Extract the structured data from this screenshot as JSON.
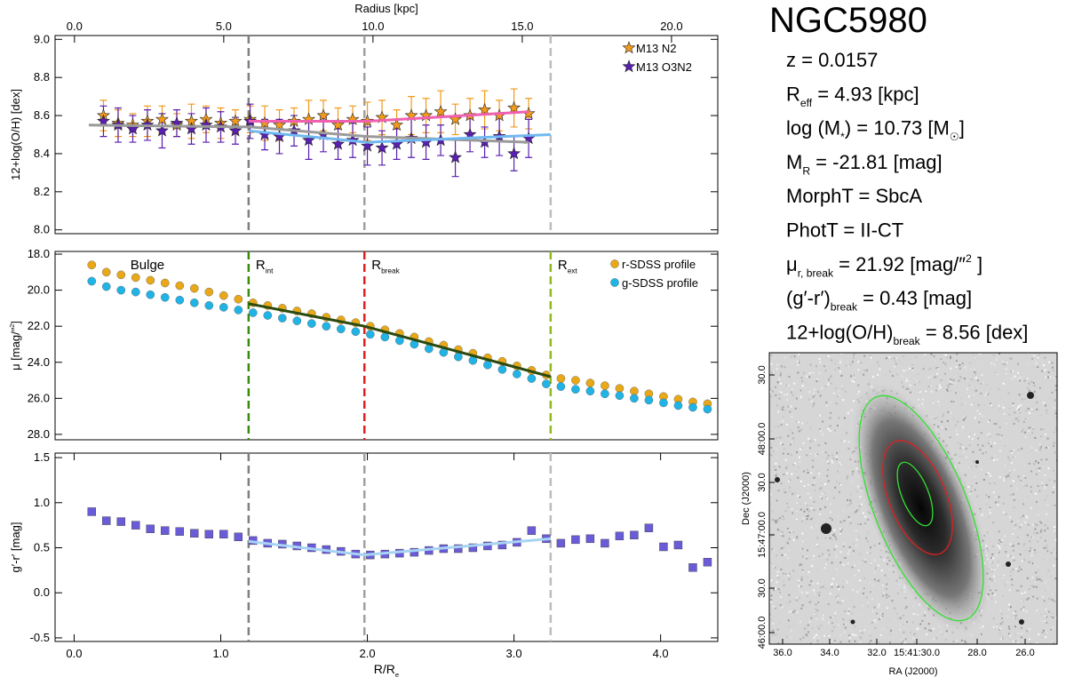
{
  "chart_data": [
    {
      "type": "scatter",
      "ylabel": [
        "12+log(O/H) [dex]"
      ],
      "x2label": "Radius [kpc]",
      "xlim": [
        -0.13,
        4.39
      ],
      "x2lim": [
        -0.65,
        21.55
      ],
      "x2ticks": [
        {
          "value": 0,
          "label": "0.0"
        },
        {
          "value": 5,
          "label": "5.0"
        },
        {
          "value": 10,
          "label": "10.0"
        },
        {
          "value": 15,
          "label": "15.0"
        },
        {
          "value": 20,
          "label": "20.0"
        }
      ],
      "ylim": [
        7.98,
        9.02
      ],
      "yticks": [
        {
          "value": 8,
          "label": "8.0"
        },
        8.2,
        8.4,
        8.6,
        8.8,
        {
          "value": 9,
          "label": "9.0"
        }
      ],
      "legend": "upper right",
      "x": [
        0.2,
        0.3,
        0.4,
        0.5,
        0.6,
        0.7,
        0.8,
        0.9,
        1.0,
        1.1,
        1.2,
        1.3,
        1.4,
        1.5,
        1.6,
        1.7,
        1.8,
        1.9,
        2.0,
        2.1,
        2.2,
        2.3,
        2.4,
        2.5,
        2.6,
        2.7,
        2.8,
        2.9,
        3.0,
        3.1
      ],
      "series": [
        {
          "name": "M13 N2",
          "color": "#f29a1c",
          "marker": "star",
          "values": [
            8.6,
            8.56,
            8.55,
            8.57,
            8.58,
            8.55,
            8.57,
            8.58,
            8.56,
            8.57,
            8.58,
            8.56,
            8.55,
            8.57,
            8.58,
            8.6,
            8.55,
            8.58,
            8.57,
            8.59,
            8.55,
            8.6,
            8.6,
            8.62,
            8.58,
            8.6,
            8.63,
            8.6,
            8.64,
            8.61
          ],
          "errors": [
            0.08,
            0.07,
            0.06,
            0.08,
            0.07,
            0.06,
            0.09,
            0.07,
            0.08,
            0.06,
            0.07,
            0.09,
            0.08,
            0.07,
            0.1,
            0.08,
            0.09,
            0.07,
            0.1,
            0.09,
            0.08,
            0.1,
            0.09,
            0.11,
            0.08,
            0.09,
            0.1,
            0.08,
            0.1,
            0.08
          ]
        },
        {
          "name": "M13 O3N2",
          "color": "#5a1fb0",
          "marker": "star",
          "values": [
            8.57,
            8.55,
            8.53,
            8.55,
            8.52,
            8.56,
            8.53,
            8.55,
            8.54,
            8.52,
            8.57,
            8.5,
            8.49,
            8.52,
            8.47,
            8.5,
            8.45,
            8.47,
            8.44,
            8.43,
            8.45,
            8.48,
            8.46,
            8.47,
            8.38,
            8.5,
            8.46,
            8.49,
            8.4,
            8.48
          ],
          "errors": [
            0.08,
            0.09,
            0.07,
            0.08,
            0.09,
            0.07,
            0.08,
            0.09,
            0.08,
            0.07,
            0.09,
            0.08,
            0.09,
            0.08,
            0.1,
            0.09,
            0.08,
            0.09,
            0.1,
            0.09,
            0.08,
            0.1,
            0.09,
            0.08,
            0.1,
            0.09,
            0.08,
            0.1,
            0.09,
            0.1
          ]
        }
      ],
      "fits": [
        {
          "color": "#9a9a9a",
          "x": [
            0.1,
            1.2,
            2.0,
            3.1
          ],
          "values": [
            8.55,
            8.54,
            8.49,
            8.46
          ]
        },
        {
          "color": "#f060b0",
          "x": [
            1.19,
            2.0,
            3.1
          ],
          "values": [
            8.57,
            8.57,
            8.62
          ]
        },
        {
          "color": "#70b8f0",
          "x": [
            1.19,
            2.0,
            3.25
          ],
          "values": [
            8.52,
            8.46,
            8.5
          ]
        }
      ],
      "vlines": [
        {
          "x": 1.19,
          "color": "#808080"
        },
        {
          "x": 1.98,
          "color": "#a0a0a0"
        },
        {
          "x": 3.25,
          "color": "#bcbcbc"
        }
      ]
    },
    {
      "type": "scatter",
      "ylabel": [
        "μ [mag/″",
        {
          "sup": "2"
        },
        "]"
      ],
      "xlim": [
        -0.13,
        4.39
      ],
      "ylim": [
        28.3,
        17.85
      ],
      "yticks": [
        {
          "value": 18,
          "label": "18.0"
        },
        {
          "value": 20,
          "label": "20.0"
        },
        {
          "value": 22,
          "label": "22.0"
        },
        {
          "value": 24,
          "label": "24.0"
        },
        {
          "value": 26,
          "label": "26.0"
        },
        {
          "value": 28,
          "label": "28.0"
        }
      ],
      "legend": "upper right",
      "annotation": {
        "text": "Bulge",
        "color": "#1f7a1f"
      },
      "x": [
        0.12,
        0.22,
        0.32,
        0.42,
        0.52,
        0.62,
        0.72,
        0.82,
        0.92,
        1.02,
        1.12,
        1.22,
        1.32,
        1.42,
        1.52,
        1.62,
        1.72,
        1.82,
        1.92,
        2.02,
        2.12,
        2.22,
        2.32,
        2.42,
        2.52,
        2.62,
        2.72,
        2.82,
        2.92,
        3.02,
        3.12,
        3.22,
        3.32,
        3.42,
        3.52,
        3.62,
        3.72,
        3.82,
        3.92,
        4.02,
        4.12,
        4.22,
        4.32
      ],
      "series": [
        {
          "name": "r-SDSS profile",
          "color": "#e8a818",
          "marker": "circle",
          "values": [
            18.6,
            19.0,
            19.15,
            19.3,
            19.45,
            19.6,
            19.75,
            19.9,
            20.1,
            20.3,
            20.5,
            20.7,
            20.85,
            21.0,
            21.15,
            21.3,
            21.5,
            21.65,
            21.8,
            22.0,
            22.2,
            22.4,
            22.6,
            22.85,
            23.05,
            23.3,
            23.5,
            23.75,
            23.95,
            24.2,
            24.45,
            24.7,
            24.9,
            25.0,
            25.15,
            25.3,
            25.45,
            25.6,
            25.75,
            25.9,
            26.05,
            26.2,
            26.3
          ]
        },
        {
          "name": "g-SDSS profile",
          "color": "#20b4e6",
          "marker": "circle",
          "values": [
            19.5,
            19.8,
            20.0,
            20.1,
            20.25,
            20.4,
            20.55,
            20.7,
            20.85,
            20.95,
            21.1,
            21.25,
            21.4,
            21.55,
            21.7,
            21.85,
            22.0,
            22.15,
            22.3,
            22.45,
            22.6,
            22.8,
            23.0,
            23.25,
            23.45,
            23.7,
            23.9,
            24.15,
            24.4,
            24.65,
            24.9,
            25.2,
            25.35,
            25.5,
            25.6,
            25.75,
            25.85,
            26.0,
            26.1,
            26.25,
            26.4,
            26.5,
            26.6
          ]
        }
      ],
      "fits": [
        {
          "color": "#2a4a10",
          "x": [
            1.19,
            1.98,
            3.25
          ],
          "values": [
            20.75,
            22.0,
            24.8
          ]
        }
      ],
      "vlines": [
        {
          "x": 1.19,
          "color": "#3a8a10",
          "label": [
            "R",
            {
              "sub": "int"
            }
          ]
        },
        {
          "x": 1.98,
          "color": "#e02020",
          "label": [
            "R",
            {
              "sub": "break"
            }
          ]
        },
        {
          "x": 3.25,
          "color": "#90b820",
          "label": [
            "R",
            {
              "sub": "ext"
            }
          ]
        }
      ]
    },
    {
      "type": "scatter",
      "ylabel": [
        "g′-r′ [mag]"
      ],
      "xlabel": [
        "R/R",
        {
          "sub": "e"
        }
      ],
      "xlim": [
        -0.13,
        4.39
      ],
      "xticks": [
        {
          "value": 0,
          "label": "0.0"
        },
        {
          "value": 1,
          "label": "1.0"
        },
        {
          "value": 2,
          "label": "2.0"
        },
        {
          "value": 3,
          "label": "3.0"
        },
        {
          "value": 4,
          "label": "4.0"
        }
      ],
      "ylim": [
        -0.54,
        1.55
      ],
      "yticks": [
        -0.5,
        {
          "value": 0,
          "label": "0.0"
        },
        0.5,
        {
          "value": 1,
          "label": "1.0"
        },
        1.5
      ],
      "x": [
        0.12,
        0.22,
        0.32,
        0.42,
        0.52,
        0.62,
        0.72,
        0.82,
        0.92,
        1.02,
        1.12,
        1.22,
        1.32,
        1.42,
        1.52,
        1.62,
        1.72,
        1.82,
        1.92,
        2.02,
        2.12,
        2.22,
        2.32,
        2.42,
        2.52,
        2.62,
        2.72,
        2.82,
        2.92,
        3.02,
        3.12,
        3.22,
        3.32,
        3.42,
        3.52,
        3.62,
        3.72,
        3.82,
        3.92,
        4.02,
        4.12,
        4.22,
        4.32
      ],
      "series": [
        {
          "color": "#6a5cd8",
          "marker": "square",
          "values": [
            0.9,
            0.8,
            0.79,
            0.75,
            0.71,
            0.69,
            0.68,
            0.66,
            0.65,
            0.65,
            0.62,
            0.58,
            0.55,
            0.54,
            0.52,
            0.5,
            0.48,
            0.46,
            0.43,
            0.42,
            0.43,
            0.44,
            0.45,
            0.47,
            0.49,
            0.49,
            0.5,
            0.52,
            0.53,
            0.56,
            0.69,
            0.6,
            0.55,
            0.59,
            0.6,
            0.55,
            0.63,
            0.64,
            0.72,
            0.51,
            0.53,
            0.28,
            0.34
          ]
        }
      ],
      "fits": [
        {
          "color": "#a8d4f4",
          "x": [
            1.19,
            1.98,
            3.25
          ],
          "values": [
            0.57,
            0.42,
            0.6
          ]
        }
      ],
      "vlines": [
        {
          "x": 1.19,
          "color": "#808080"
        },
        {
          "x": 1.98,
          "color": "#a0a0a0"
        },
        {
          "x": 3.25,
          "color": "#bcbcbc"
        }
      ]
    }
  ],
  "info": {
    "title": "NGC5980",
    "lines": [
      [
        "z =  0.0157"
      ],
      [
        "R",
        {
          "sub": "eff"
        },
        " = 4.93 [kpc]"
      ],
      [
        "log (M",
        {
          "sub": "*"
        },
        ") =  10.73 [M",
        {
          "sub": "☉"
        },
        "]"
      ],
      [
        "M",
        {
          "sub": "R"
        },
        " =  -21.81 [mag]"
      ],
      [
        "MorphT =  SbcA"
      ],
      [
        "PhotT =  II-CT"
      ],
      [
        "μ",
        {
          "sub": "r, break"
        },
        " =  21.92 [mag/″",
        {
          "sup": "2"
        },
        " ]"
      ],
      [
        "(g′-r′)",
        {
          "sub": "break"
        },
        " =   0.43 [mag]"
      ],
      [
        "12+log(O/H)",
        {
          "sub": "break"
        },
        " =   8.56 [dex]"
      ]
    ]
  },
  "image": {
    "xlabel": "RA (J2000)",
    "ylabel": "Dec (J2000)",
    "xticks": [
      "36.0",
      "34.0",
      "32.0",
      "15:41:30.0",
      "28.0",
      "26.0"
    ],
    "yticks": [
      "30.0",
      "48:00.0",
      "30.0",
      "15:47:00.0",
      "30.0",
      "46:00.0"
    ]
  }
}
